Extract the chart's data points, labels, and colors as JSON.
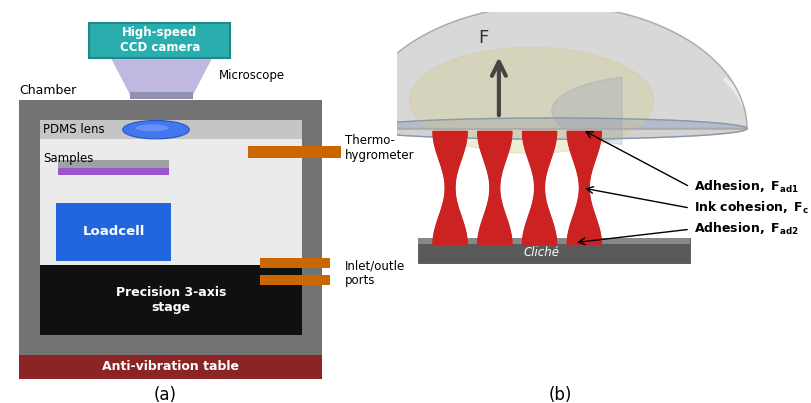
{
  "bg_color": "#ffffff",
  "panel_a": {
    "chamber_color": "#737373",
    "chamber_inner": "#e0e0e0",
    "top_bar_color": "#c8c8c8",
    "camera_box_color": "#2aadad",
    "camera_box_text": "High-speed\nCCD camera",
    "camera_body_color": "#c0b8e0",
    "microscope_label": "Microscope",
    "chamber_label": "Chamber",
    "pdms_lens_color": "#4477ee",
    "pdms_label": "PDMS lens",
    "sample_top_color": "#909090",
    "sample_bottom_color": "#8855bb",
    "samples_label": "Samples",
    "loadcell_color": "#2255cc",
    "loadcell_label": "Loadcell",
    "stage_color": "#101010",
    "stage_label": "Precision 3-axis\nstage",
    "antivib_color": "#8b2525",
    "antivib_label": "Anti-vibration table",
    "thermo_color": "#cc6600",
    "thermo_label": "Thermo-\nhygrometer",
    "inlet_color": "#cc6600",
    "inlet_label": "Inlet/outle\nports",
    "panel_label": "(a)"
  },
  "panel_b": {
    "arrow_color": "#555555",
    "F_label": "F",
    "ink_color": "#cc2222",
    "cliche_color": "#666666",
    "cliche_label": "Cliché",
    "ad1_label": "Adhesion, F",
    "ad1_sub": "ad1",
    "cohesion_label": "Ink cohesion, F",
    "cohesion_sub": "c",
    "ad2_label": "Adhesion, F",
    "ad2_sub": "ad2",
    "panel_label": "(b)"
  },
  "label_fontsize": 11,
  "small_fontsize": 9
}
